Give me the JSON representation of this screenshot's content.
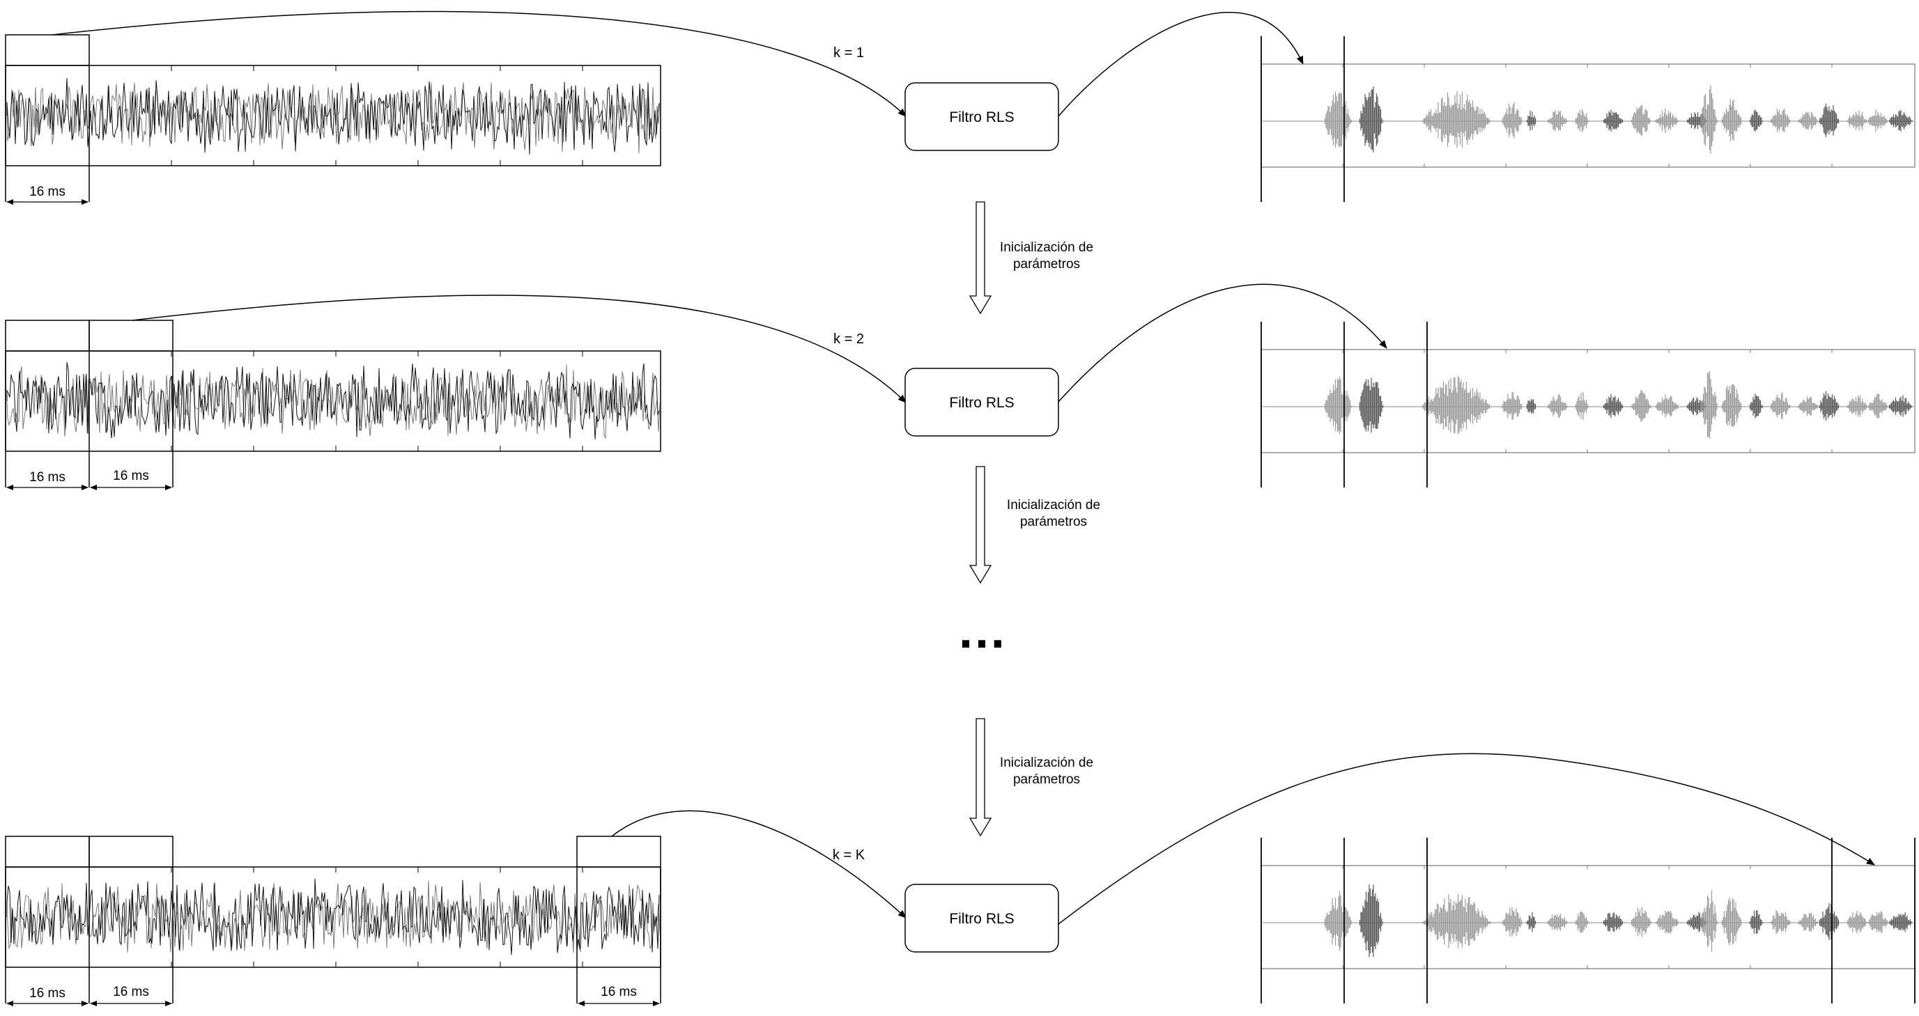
{
  "rows": [
    {
      "k_label": "k = 1",
      "filter_label": "Filtro RLS",
      "window_labels": [
        "16 ms"
      ]
    },
    {
      "k_label": "k = 2",
      "filter_label": "Filtro RLS",
      "window_labels": [
        "16 ms",
        "16 ms"
      ]
    },
    {
      "k_label": "k = K",
      "filter_label": "Filtro RLS",
      "window_labels": [
        "16 ms",
        "16 ms",
        "16 ms"
      ]
    }
  ],
  "init_arrows": [
    {
      "line1": "Inicialización de",
      "line2": "parámetros"
    },
    {
      "line1": "Inicialización de",
      "line2": "parámetros"
    },
    {
      "line1": "Inicialización de",
      "line2": "parámetros"
    }
  ],
  "ellipsis": "…",
  "colors": {
    "stroke": "#000000",
    "wave_dark": "#111111",
    "wave_gray": "#7a7a7a",
    "speech_light": "#9a9a9a",
    "speech_dark": "#555555"
  }
}
